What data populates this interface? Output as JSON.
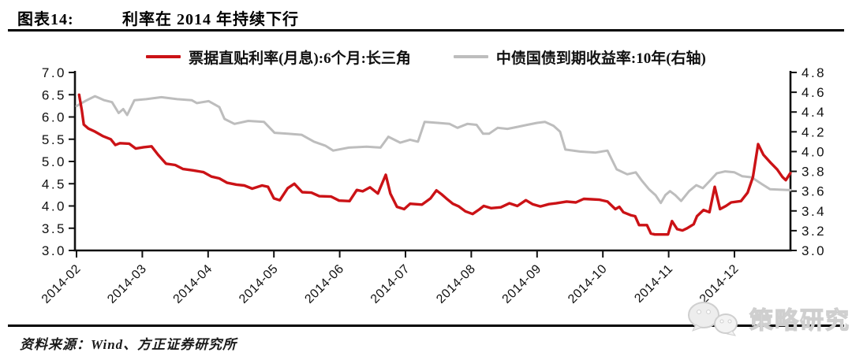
{
  "header": {
    "figure_label": "图表14:",
    "title": "利率在 2014 年持续下行"
  },
  "legend": [
    {
      "label": "票据直贴利率(月息):6个月:长三角",
      "color": "#cb1216"
    },
    {
      "label": "中债国债到期收益率:10年(右轴)",
      "color": "#bdbdbd"
    }
  ],
  "source": {
    "text": "资料来源：Wind、方正证券研究所"
  },
  "watermark": {
    "text": "策略研究",
    "icon": "wechat-chat-bubbles-icon"
  },
  "chart_data": {
    "type": "line",
    "title": "利率在 2014 年持续下行",
    "grid": false,
    "legend_position": "top",
    "x_domain": [
      2.0,
      12.85
    ],
    "x_tick_labels": [
      "2014-02",
      "2014-03",
      "2014-04",
      "2014-05",
      "2014-06",
      "2014-07",
      "2014-08",
      "2014-09",
      "2014-10",
      "2014-11",
      "2014-12"
    ],
    "left_axis": {
      "min": 3.0,
      "max": 7.0,
      "step": 0.5,
      "ticks": [
        "7.0",
        "6.5",
        "6.0",
        "5.5",
        "5.0",
        "4.5",
        "4.0",
        "3.5",
        "3.0"
      ]
    },
    "right_axis": {
      "min": 3.0,
      "max": 4.8,
      "step": 0.2,
      "ticks": [
        "4.8",
        "4.6",
        "4.4",
        "4.2",
        "4.0",
        "3.8",
        "3.6",
        "3.4",
        "3.2",
        "3.0"
      ]
    },
    "series": [
      {
        "id": "discounted-bill-rate",
        "name": "票据直贴利率(月息):6个月:长三角",
        "axis": "left",
        "color": "#cb1216",
        "width": 3.4,
        "points": [
          [
            2.04,
            6.5
          ],
          [
            2.08,
            6.15
          ],
          [
            2.11,
            5.83
          ],
          [
            2.18,
            5.74
          ],
          [
            2.28,
            5.67
          ],
          [
            2.4,
            5.57
          ],
          [
            2.52,
            5.5
          ],
          [
            2.59,
            5.37
          ],
          [
            2.66,
            5.41
          ],
          [
            2.8,
            5.4
          ],
          [
            2.9,
            5.29
          ],
          [
            3.02,
            5.32
          ],
          [
            3.14,
            5.34
          ],
          [
            3.24,
            5.15
          ],
          [
            3.36,
            4.95
          ],
          [
            3.5,
            4.92
          ],
          [
            3.62,
            4.83
          ],
          [
            3.77,
            4.8
          ],
          [
            3.93,
            4.76
          ],
          [
            4.05,
            4.66
          ],
          [
            4.17,
            4.62
          ],
          [
            4.29,
            4.52
          ],
          [
            4.43,
            4.48
          ],
          [
            4.55,
            4.46
          ],
          [
            4.67,
            4.39
          ],
          [
            4.82,
            4.46
          ],
          [
            4.91,
            4.43
          ],
          [
            5.0,
            4.17
          ],
          [
            5.09,
            4.13
          ],
          [
            5.21,
            4.4
          ],
          [
            5.31,
            4.5
          ],
          [
            5.43,
            4.31
          ],
          [
            5.57,
            4.3
          ],
          [
            5.69,
            4.22
          ],
          [
            5.87,
            4.21
          ],
          [
            5.99,
            4.12
          ],
          [
            6.15,
            4.11
          ],
          [
            6.26,
            4.36
          ],
          [
            6.35,
            4.33
          ],
          [
            6.46,
            4.42
          ],
          [
            6.58,
            4.28
          ],
          [
            6.7,
            4.7
          ],
          [
            6.77,
            4.28
          ],
          [
            6.87,
            3.98
          ],
          [
            6.98,
            3.93
          ],
          [
            7.07,
            4.05
          ],
          [
            7.25,
            4.03
          ],
          [
            7.38,
            4.17
          ],
          [
            7.47,
            4.35
          ],
          [
            7.55,
            4.26
          ],
          [
            7.62,
            4.17
          ],
          [
            7.72,
            4.05
          ],
          [
            7.81,
            3.99
          ],
          [
            7.91,
            3.88
          ],
          [
            8.02,
            3.82
          ],
          [
            8.12,
            3.92
          ],
          [
            8.19,
            4.0
          ],
          [
            8.3,
            3.95
          ],
          [
            8.45,
            3.97
          ],
          [
            8.58,
            4.06
          ],
          [
            8.7,
            4.0
          ],
          [
            8.83,
            4.13
          ],
          [
            8.93,
            4.04
          ],
          [
            9.05,
            3.99
          ],
          [
            9.18,
            4.04
          ],
          [
            9.29,
            4.06
          ],
          [
            9.45,
            4.1
          ],
          [
            9.59,
            4.08
          ],
          [
            9.71,
            4.16
          ],
          [
            9.83,
            4.15
          ],
          [
            9.95,
            4.14
          ],
          [
            10.07,
            4.1
          ],
          [
            10.19,
            3.93
          ],
          [
            10.25,
            3.98
          ],
          [
            10.31,
            3.86
          ],
          [
            10.43,
            3.79
          ],
          [
            10.49,
            3.77
          ],
          [
            10.55,
            3.57
          ],
          [
            10.67,
            3.57
          ],
          [
            10.73,
            3.38
          ],
          [
            10.79,
            3.36
          ],
          [
            10.99,
            3.36
          ],
          [
            11.05,
            3.66
          ],
          [
            11.13,
            3.48
          ],
          [
            11.21,
            3.45
          ],
          [
            11.28,
            3.5
          ],
          [
            11.38,
            3.59
          ],
          [
            11.43,
            3.77
          ],
          [
            11.53,
            3.91
          ],
          [
            11.62,
            3.86
          ],
          [
            11.7,
            4.43
          ],
          [
            11.78,
            3.93
          ],
          [
            11.87,
            4.0
          ],
          [
            11.95,
            4.08
          ],
          [
            12.1,
            4.11
          ],
          [
            12.2,
            4.3
          ],
          [
            12.28,
            4.65
          ],
          [
            12.36,
            5.39
          ],
          [
            12.44,
            5.15
          ],
          [
            12.55,
            4.97
          ],
          [
            12.65,
            4.82
          ],
          [
            12.73,
            4.65
          ],
          [
            12.78,
            4.58
          ],
          [
            12.85,
            4.74
          ]
        ]
      },
      {
        "id": "treasury-yield-10y",
        "name": "中债国债到期收益率:10年(右轴)",
        "axis": "right",
        "color": "#bdbdbd",
        "width": 3.0,
        "points": [
          [
            2.0,
            4.46
          ],
          [
            2.13,
            4.51
          ],
          [
            2.28,
            4.56
          ],
          [
            2.42,
            4.52
          ],
          [
            2.54,
            4.5
          ],
          [
            2.64,
            4.39
          ],
          [
            2.71,
            4.43
          ],
          [
            2.77,
            4.37
          ],
          [
            2.88,
            4.52
          ],
          [
            3.06,
            4.53
          ],
          [
            3.29,
            4.55
          ],
          [
            3.53,
            4.53
          ],
          [
            3.75,
            4.52
          ],
          [
            3.83,
            4.49
          ],
          [
            4.01,
            4.51
          ],
          [
            4.17,
            4.45
          ],
          [
            4.25,
            4.33
          ],
          [
            4.4,
            4.28
          ],
          [
            4.61,
            4.31
          ],
          [
            4.85,
            4.3
          ],
          [
            5.01,
            4.19
          ],
          [
            5.21,
            4.18
          ],
          [
            5.42,
            4.17
          ],
          [
            5.61,
            4.1
          ],
          [
            5.78,
            4.06
          ],
          [
            5.9,
            4.01
          ],
          [
            6.14,
            4.04
          ],
          [
            6.41,
            4.05
          ],
          [
            6.62,
            4.04
          ],
          [
            6.74,
            4.15
          ],
          [
            6.92,
            4.09
          ],
          [
            7.07,
            4.12
          ],
          [
            7.19,
            4.1
          ],
          [
            7.29,
            4.3
          ],
          [
            7.49,
            4.29
          ],
          [
            7.67,
            4.28
          ],
          [
            7.79,
            4.24
          ],
          [
            7.94,
            4.28
          ],
          [
            8.08,
            4.27
          ],
          [
            8.18,
            4.18
          ],
          [
            8.27,
            4.18
          ],
          [
            8.4,
            4.24
          ],
          [
            8.55,
            4.23
          ],
          [
            8.7,
            4.25
          ],
          [
            8.85,
            4.27
          ],
          [
            9.0,
            4.29
          ],
          [
            9.12,
            4.3
          ],
          [
            9.25,
            4.26
          ],
          [
            9.35,
            4.2
          ],
          [
            9.43,
            4.02
          ],
          [
            9.65,
            4.0
          ],
          [
            9.89,
            3.99
          ],
          [
            10.07,
            4.01
          ],
          [
            10.21,
            3.82
          ],
          [
            10.37,
            3.77
          ],
          [
            10.5,
            3.79
          ],
          [
            10.6,
            3.7
          ],
          [
            10.7,
            3.62
          ],
          [
            10.8,
            3.56
          ],
          [
            10.88,
            3.48
          ],
          [
            10.95,
            3.56
          ],
          [
            11.02,
            3.6
          ],
          [
            11.1,
            3.56
          ],
          [
            11.19,
            3.5
          ],
          [
            11.31,
            3.6
          ],
          [
            11.42,
            3.66
          ],
          [
            11.52,
            3.63
          ],
          [
            11.62,
            3.7
          ],
          [
            11.73,
            3.78
          ],
          [
            11.86,
            3.8
          ],
          [
            12.0,
            3.79
          ],
          [
            12.12,
            3.75
          ],
          [
            12.26,
            3.74
          ],
          [
            12.42,
            3.67
          ],
          [
            12.54,
            3.62
          ],
          [
            12.85,
            3.61
          ]
        ]
      }
    ]
  }
}
